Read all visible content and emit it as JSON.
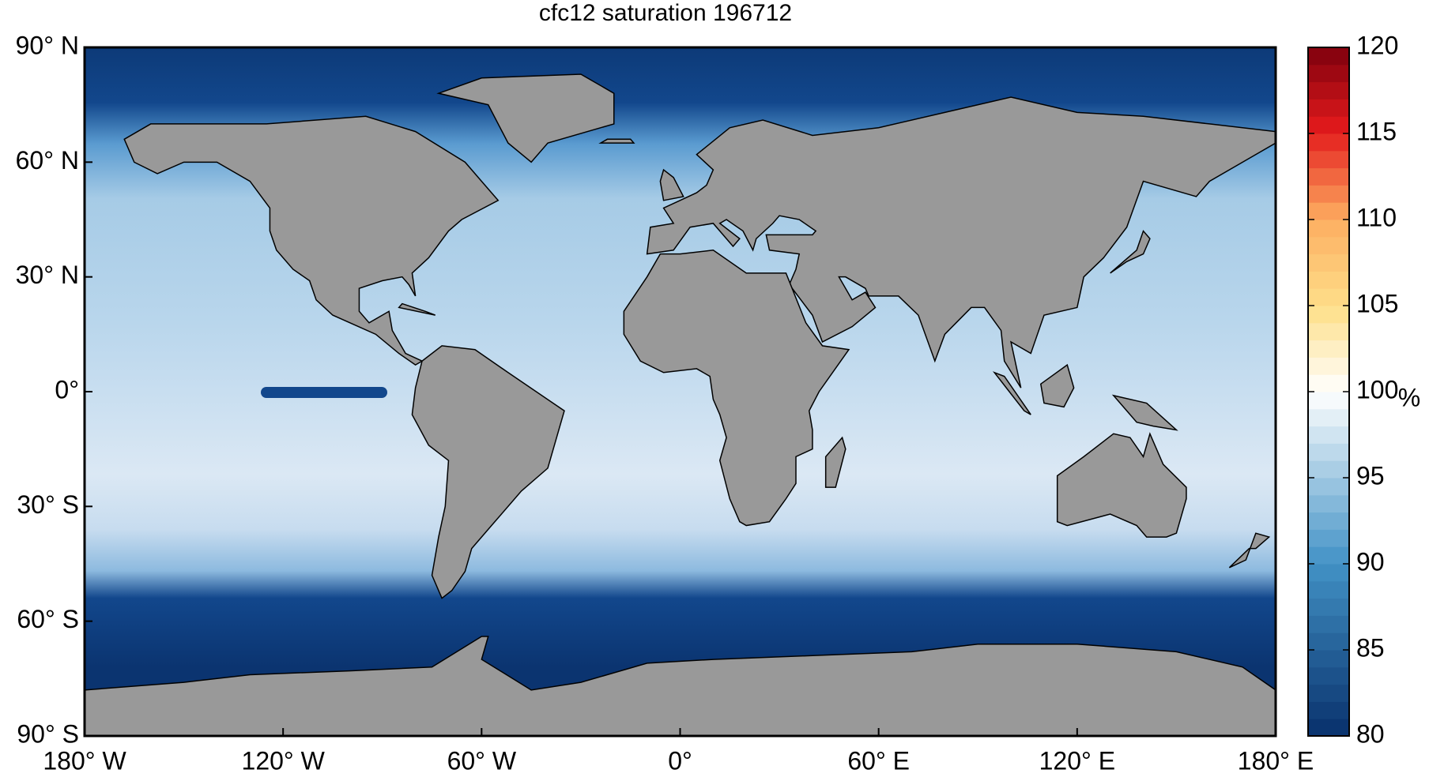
{
  "title": "cfc12 saturation 196712",
  "map": {
    "lat_ticks": [
      {
        "value": 90,
        "label": "90° N"
      },
      {
        "value": 60,
        "label": "60° N"
      },
      {
        "value": 30,
        "label": "30° N"
      },
      {
        "value": 0,
        "label": "0°"
      },
      {
        "value": -30,
        "label": "30° S"
      },
      {
        "value": -60,
        "label": "60° S"
      },
      {
        "value": -90,
        "label": "90° S"
      }
    ],
    "lon_ticks": [
      {
        "value": -180,
        "label": "180° W"
      },
      {
        "value": -120,
        "label": "120° W"
      },
      {
        "value": -60,
        "label": "60° W"
      },
      {
        "value": 0,
        "label": "0°"
      },
      {
        "value": 60,
        "label": "60° E"
      },
      {
        "value": 120,
        "label": "120° E"
      },
      {
        "value": 180,
        "label": "180° E"
      }
    ]
  },
  "colorbar": {
    "label": "%",
    "clim": [
      80,
      120
    ],
    "ticks": [
      80,
      85,
      90,
      95,
      100,
      105,
      110,
      115,
      120
    ]
  }
}
